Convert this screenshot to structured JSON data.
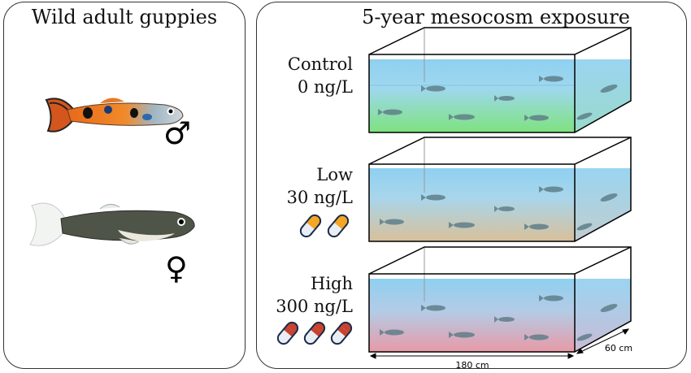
{
  "left_panel": {
    "title": "Wild adult guppies",
    "male_symbol": "♂",
    "female_symbol": "♀"
  },
  "right_panel": {
    "title": "5-year mesocosm exposure",
    "tanks": [
      {
        "name": "Control",
        "concentration": "0 ng/L",
        "pill_count": 0,
        "sediment_color": "#7ee27e"
      },
      {
        "name": "Low",
        "concentration": "30 ng/L",
        "pill_count": 2,
        "sediment_color": "#d8c09a",
        "pill_color": "#f5a524"
      },
      {
        "name": "High",
        "concentration": "300 ng/L",
        "pill_count": 3,
        "sediment_color": "#e89aa6",
        "pill_color": "#c8432f"
      }
    ],
    "dimensions": {
      "length": "180 cm",
      "width": "60 cm"
    }
  },
  "colors": {
    "water_top": "#8fd0f0",
    "pill_white": "#e8eef4"
  },
  "icons": [
    "male-guppy-icon",
    "female-guppy-icon",
    "capsule-pill-icon",
    "guppy-icon"
  ]
}
